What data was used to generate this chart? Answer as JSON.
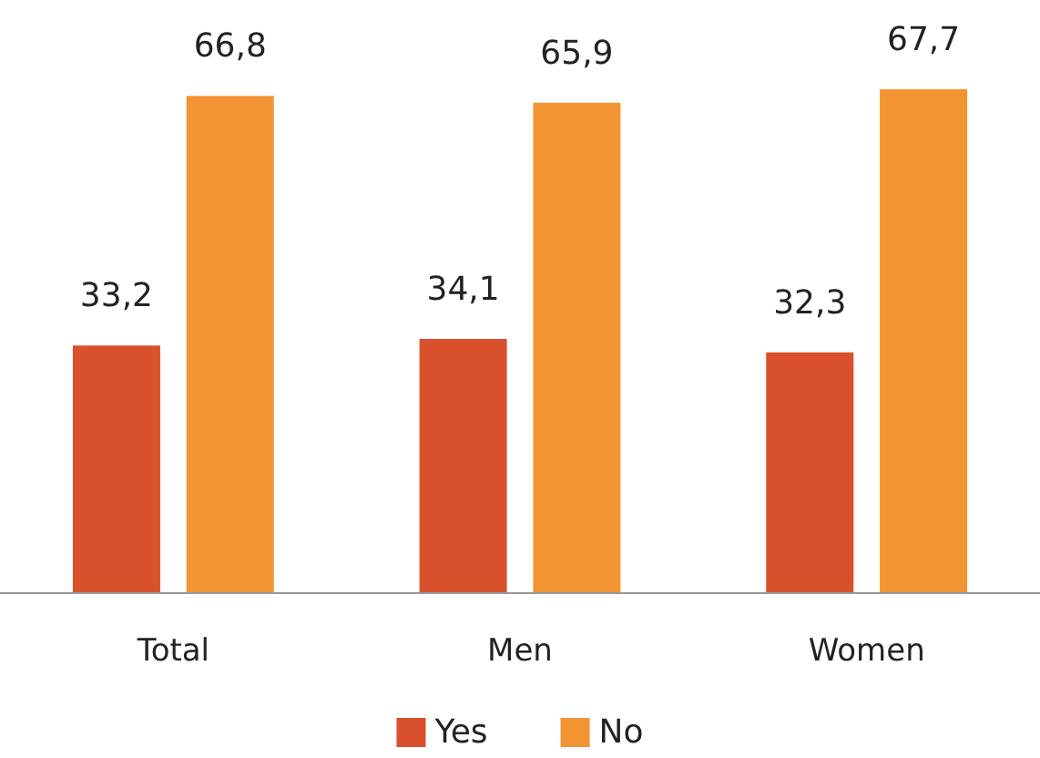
{
  "chart_data": {
    "type": "bar",
    "categories": [
      "Total",
      "Men",
      "Women"
    ],
    "series": [
      {
        "name": "Yes",
        "color": "#d9512c",
        "values": [
          33.2,
          34.1,
          32.3
        ],
        "value_labels": [
          "33,2",
          "34,1",
          "32,3"
        ]
      },
      {
        "name": "No",
        "color": "#f39433",
        "values": [
          66.8,
          65.9,
          67.7
        ],
        "value_labels": [
          "66,8",
          "65,9",
          "67,7"
        ]
      }
    ],
    "legend": "bottom",
    "grid": false
  }
}
